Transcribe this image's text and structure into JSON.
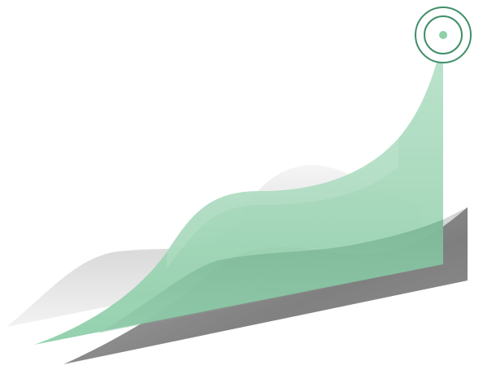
{
  "illustration": {
    "subject": "growth-trend-graphic",
    "icons": [
      "target-icon"
    ],
    "colors": {
      "green_light": "#b9e3cb",
      "green_mid": "#8fcfaa",
      "green_dark": "#2f7a57",
      "target_ring": "#3f8f68",
      "grey_light": "#ececec",
      "grey_mid": "#cfcfcf",
      "grey_dark": "#7e7e7e"
    }
  }
}
